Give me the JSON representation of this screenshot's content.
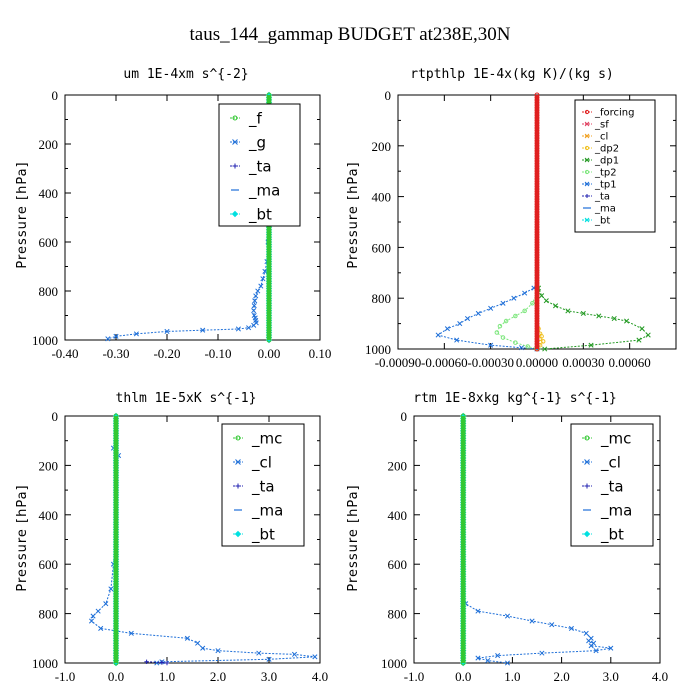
{
  "title": "taus_144_gammap  BUDGET at238E,30N",
  "chart_data": [
    {
      "type": "line",
      "title": "um   1E-4xm s^{-2}",
      "ylabel": "Pressure [hPa]",
      "xlim": [
        -0.4,
        0.1
      ],
      "ylim": [
        1000,
        0
      ],
      "xticks": [
        "-0.40",
        "-0.30",
        "-0.20",
        "-0.10",
        "0.00",
        "0.10"
      ],
      "xtick_values": [
        -0.4,
        -0.3,
        -0.2,
        -0.1,
        0.0,
        0.1
      ],
      "yticks": [
        0,
        200,
        400,
        600,
        800,
        1000
      ],
      "legend": [
        "_f",
        "_g",
        "_ta",
        "_ma",
        "_bt"
      ],
      "series": [
        {
          "name": "_g",
          "color": "#1e6fd8",
          "marker": "x",
          "x": [
            0.0,
            0.0,
            0.003,
            0.004,
            0.0,
            -0.002,
            -0.001,
            0.0,
            0.0,
            -0.001,
            -0.002,
            -0.004,
            -0.008,
            -0.012,
            -0.016,
            -0.022,
            -0.026,
            -0.028,
            -0.029,
            -0.03,
            -0.029,
            -0.027,
            -0.026,
            -0.025,
            -0.03,
            -0.04,
            -0.06,
            -0.13,
            -0.2,
            -0.26,
            -0.3,
            -0.316
          ],
          "y": [
            100,
            120,
            140,
            160,
            200,
            250,
            300,
            350,
            400,
            500,
            600,
            680,
            720,
            750,
            780,
            800,
            820,
            840,
            860,
            880,
            900,
            910,
            920,
            930,
            940,
            950,
            955,
            960,
            965,
            975,
            985,
            995
          ]
        },
        {
          "name": "_bt",
          "color": "#00e0e0",
          "marker": "diamond",
          "x": [
            0,
            0,
            0,
            0,
            0,
            0,
            0,
            0,
            0,
            0,
            0
          ],
          "y": [
            0,
            100,
            200,
            300,
            400,
            500,
            600,
            700,
            800,
            900,
            1000
          ]
        },
        {
          "name": "_f",
          "color": "#33c833",
          "marker": "o",
          "x": [
            0,
            0,
            0,
            0,
            0,
            0,
            0,
            0,
            0,
            0,
            0
          ],
          "y": [
            0,
            100,
            200,
            300,
            400,
            500,
            600,
            700,
            800,
            900,
            1000
          ]
        }
      ]
    },
    {
      "type": "line",
      "title": "rtpthlp   1E-4x(kg K)/(kg s)",
      "ylabel": "Pressure [hPa]",
      "xlim": [
        -0.0009,
        0.0009
      ],
      "ylim": [
        1000,
        0
      ],
      "xticks": [
        "-0.00090",
        "-0.00060",
        "-0.00030",
        "0.00000",
        "0.00030",
        "0.00060"
      ],
      "xtick_values": [
        -0.0009,
        -0.0006,
        -0.0003,
        0.0,
        0.0003,
        0.0006
      ],
      "yticks": [
        0,
        200,
        400,
        600,
        800,
        1000
      ],
      "legend": [
        "_forcing",
        "_sf",
        "_cl",
        "_dp2",
        "_dp1",
        "_tp2",
        "_tp1",
        "_ta",
        "_ma",
        "_bt"
      ],
      "series": [
        {
          "name": "_dp1",
          "color": "#229922",
          "marker": "x",
          "x": [
            0,
            1e-05,
            3e-05,
            6e-05,
            0.00012,
            0.0002,
            0.0003,
            0.0004,
            0.0005,
            0.00058,
            0.00068,
            0.00072,
            0.00066,
            0.00035,
            5e-05,
            0
          ],
          "y": [
            700,
            760,
            790,
            810,
            830,
            850,
            860,
            870,
            880,
            890,
            920,
            945,
            965,
            985,
            1000,
            1000
          ]
        },
        {
          "name": "_tp1",
          "color": "#1e6fd8",
          "marker": "x",
          "x": [
            0,
            -2e-05,
            -8e-05,
            -0.00015,
            -0.00022,
            -0.0003,
            -0.00038,
            -0.00045,
            -0.0005,
            -0.00058,
            -0.00064,
            -0.00052,
            -0.0003,
            -0.0001,
            0
          ],
          "y": [
            740,
            760,
            780,
            800,
            820,
            840,
            860,
            880,
            900,
            920,
            945,
            965,
            985,
            995,
            1000
          ]
        },
        {
          "name": "_tp2",
          "color": "#7ce67c",
          "marker": "o",
          "x": [
            0,
            -3e-05,
            -8e-05,
            -0.00014,
            -0.0002,
            -0.00024,
            -0.00026,
            -0.00022,
            -0.00014,
            -6e-05,
            0
          ],
          "y": [
            780,
            820,
            850,
            870,
            890,
            910,
            935,
            955,
            975,
            990,
            1000
          ]
        },
        {
          "name": "_dp2",
          "color": "#f0c020",
          "marker": "o",
          "x": [
            0,
            1e-05,
            2e-05,
            3e-05,
            2e-05,
            4e-05,
            2e-05,
            0
          ],
          "y": [
            900,
            920,
            940,
            950,
            960,
            970,
            985,
            1000
          ]
        },
        {
          "name": "_forcing",
          "color": "#e02020",
          "marker": "o",
          "x": [
            0,
            0,
            0,
            0,
            0,
            0,
            0,
            0,
            0,
            0,
            0
          ],
          "y": [
            0,
            100,
            200,
            300,
            400,
            500,
            600,
            700,
            800,
            900,
            1000
          ]
        }
      ]
    },
    {
      "type": "line",
      "title": "thlm   1E-5xK s^{-1}",
      "ylabel": "Pressure [hPa]",
      "xlim": [
        -1.0,
        4.0
      ],
      "ylim": [
        1000,
        0
      ],
      "xticks": [
        "-1.0",
        "0.0",
        "1.0",
        "2.0",
        "3.0",
        "4.0"
      ],
      "xtick_values": [
        -1.0,
        0.0,
        1.0,
        2.0,
        3.0,
        4.0
      ],
      "yticks": [
        0,
        200,
        400,
        600,
        800,
        1000
      ],
      "legend": [
        "_mc",
        "_cl",
        "_ta",
        "_ma",
        "_bt"
      ],
      "series": [
        {
          "name": "_cl",
          "color": "#1e6fd8",
          "marker": "x",
          "x": [
            0,
            -0.05,
            0.0,
            0.05,
            0.0,
            0.0,
            0.0,
            0.0,
            -0.05,
            -0.1,
            -0.2,
            -0.35,
            -0.45,
            -0.48,
            -0.3,
            0.3,
            1.4,
            1.6,
            1.7,
            2.0,
            2.8,
            3.5,
            3.9,
            3.0,
            0.9,
            0.8
          ],
          "y": [
            110,
            130,
            150,
            160,
            200,
            300,
            400,
            500,
            600,
            700,
            760,
            790,
            810,
            830,
            860,
            880,
            900,
            920,
            940,
            950,
            960,
            965,
            975,
            985,
            995,
            1000
          ]
        },
        {
          "name": "_ta",
          "color": "#2020b0",
          "marker": "+",
          "x": [
            0.6,
            0.9,
            1.0
          ],
          "y": [
            995,
            998,
            1000
          ]
        },
        {
          "name": "_bt",
          "color": "#00e0e0",
          "marker": "diamond",
          "x": [
            0,
            0,
            0,
            0,
            0,
            0,
            0,
            0,
            0,
            0,
            0
          ],
          "y": [
            0,
            100,
            200,
            300,
            400,
            500,
            600,
            700,
            800,
            900,
            1000
          ]
        },
        {
          "name": "_mc",
          "color": "#33c833",
          "marker": "o",
          "x": [
            0,
            0,
            0,
            0,
            0,
            0,
            0,
            0,
            0,
            0,
            0
          ],
          "y": [
            0,
            100,
            200,
            300,
            400,
            500,
            600,
            700,
            800,
            900,
            1000
          ]
        }
      ]
    },
    {
      "type": "line",
      "title": "rtm   1E-8xkg kg^{-1} s^{-1}",
      "ylabel": "Pressure [hPa]",
      "xlim": [
        -1.0,
        4.0
      ],
      "ylim": [
        1000,
        0
      ],
      "xticks": [
        "-1.0",
        "0.0",
        "1.0",
        "2.0",
        "3.0",
        "4.0"
      ],
      "xtick_values": [
        -1.0,
        0.0,
        1.0,
        2.0,
        3.0,
        4.0
      ],
      "yticks": [
        0,
        200,
        400,
        600,
        800,
        1000
      ],
      "legend": [
        "_mc",
        "_cl",
        "_ta",
        "_ma",
        "_bt"
      ],
      "series": [
        {
          "name": "_cl",
          "color": "#1e6fd8",
          "marker": "x",
          "x": [
            0,
            0,
            0,
            0,
            0,
            0,
            0,
            0.05,
            0.3,
            0.9,
            1.4,
            1.8,
            2.2,
            2.5,
            2.6,
            2.55,
            2.65,
            2.6,
            3.0,
            2.7,
            1.6,
            0.7,
            0.3,
            0.5,
            0.9
          ],
          "y": [
            100,
            200,
            300,
            400,
            500,
            600,
            700,
            760,
            790,
            810,
            830,
            845,
            860,
            880,
            900,
            910,
            920,
            930,
            940,
            950,
            960,
            970,
            980,
            990,
            1000
          ]
        },
        {
          "name": "_bt",
          "color": "#00e0e0",
          "marker": "diamond",
          "x": [
            0,
            0,
            0,
            0,
            0,
            0,
            0,
            0,
            0,
            0,
            0
          ],
          "y": [
            0,
            100,
            200,
            300,
            400,
            500,
            600,
            700,
            800,
            900,
            1000
          ]
        },
        {
          "name": "_mc",
          "color": "#33c833",
          "marker": "o",
          "x": [
            0,
            0,
            0,
            0,
            0,
            0,
            0,
            0,
            0,
            0,
            0
          ],
          "y": [
            0,
            100,
            200,
            300,
            400,
            500,
            600,
            700,
            800,
            900,
            1000
          ]
        }
      ]
    }
  ]
}
